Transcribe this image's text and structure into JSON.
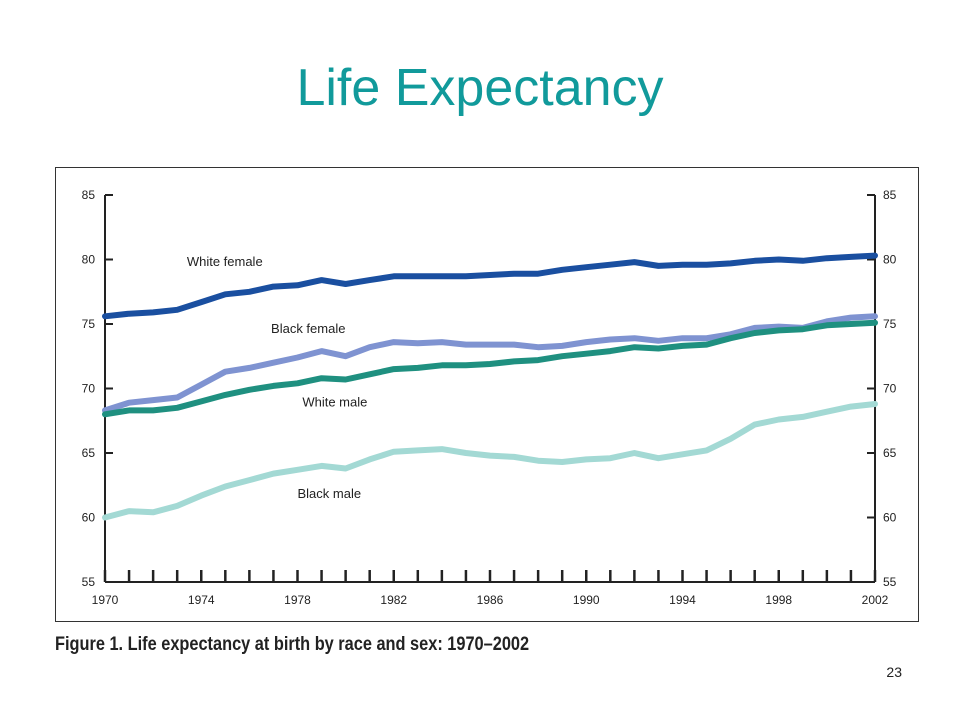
{
  "slide": {
    "title": "Life Expectancy",
    "caption": "Figure 1. Life expectancy at birth by race and sex: 1970–2002",
    "page_number": "23"
  },
  "chart_data": {
    "type": "line",
    "title": "Life expectancy at birth by race and sex: 1970–2002",
    "xlabel": "",
    "ylabel": "",
    "xlim": [
      1970,
      2002
    ],
    "ylim": [
      55,
      85
    ],
    "x_ticks": [
      1970,
      1974,
      1978,
      1982,
      1986,
      1990,
      1994,
      1998,
      2002
    ],
    "y_ticks": [
      55,
      60,
      65,
      70,
      75,
      80,
      85
    ],
    "grid": false,
    "legend": "inline labels",
    "x": [
      1970,
      1971,
      1972,
      1973,
      1974,
      1975,
      1976,
      1977,
      1978,
      1979,
      1980,
      1981,
      1982,
      1983,
      1984,
      1985,
      1986,
      1987,
      1988,
      1989,
      1990,
      1991,
      1992,
      1993,
      1994,
      1995,
      1996,
      1997,
      1998,
      1999,
      2000,
      2001,
      2002
    ],
    "series": [
      {
        "name": "White female",
        "color": "#1a4fa0",
        "values": [
          75.6,
          75.8,
          75.9,
          76.1,
          76.7,
          77.3,
          77.5,
          77.9,
          78.0,
          78.4,
          78.1,
          78.4,
          78.7,
          78.7,
          78.7,
          78.7,
          78.8,
          78.9,
          78.9,
          79.2,
          79.4,
          79.6,
          79.8,
          79.5,
          79.6,
          79.6,
          79.7,
          79.9,
          80.0,
          79.9,
          80.1,
          80.2,
          80.3
        ]
      },
      {
        "name": "Black female",
        "color": "#7f93d1",
        "values": [
          68.3,
          68.9,
          69.1,
          69.3,
          70.3,
          71.3,
          71.6,
          72.0,
          72.4,
          72.9,
          72.5,
          73.2,
          73.6,
          73.5,
          73.6,
          73.4,
          73.4,
          73.4,
          73.2,
          73.3,
          73.6,
          73.8,
          73.9,
          73.7,
          73.9,
          73.9,
          74.2,
          74.7,
          74.8,
          74.7,
          75.2,
          75.5,
          75.6
        ]
      },
      {
        "name": "White male",
        "color": "#1f9080",
        "values": [
          68.0,
          68.3,
          68.3,
          68.5,
          69.0,
          69.5,
          69.9,
          70.2,
          70.4,
          70.8,
          70.7,
          71.1,
          71.5,
          71.6,
          71.8,
          71.8,
          71.9,
          72.1,
          72.2,
          72.5,
          72.7,
          72.9,
          73.2,
          73.1,
          73.3,
          73.4,
          73.9,
          74.3,
          74.5,
          74.6,
          74.9,
          75.0,
          75.1
        ]
      },
      {
        "name": "Black male",
        "color": "#a3d9d4",
        "values": [
          60.0,
          60.5,
          60.4,
          60.9,
          61.7,
          62.4,
          62.9,
          63.4,
          63.7,
          64.0,
          63.8,
          64.5,
          65.1,
          65.2,
          65.3,
          65.0,
          64.8,
          64.7,
          64.4,
          64.3,
          64.5,
          64.6,
          65.0,
          64.6,
          64.9,
          65.2,
          66.1,
          67.2,
          67.6,
          67.8,
          68.2,
          68.6,
          68.8
        ]
      }
    ],
    "annotations": [
      {
        "text": "White female",
        "x": 1973.4,
        "y": 79.5
      },
      {
        "text": "Black female",
        "x": 1976.9,
        "y": 74.3
      },
      {
        "text": "White male",
        "x": 1978.2,
        "y": 68.6
      },
      {
        "text": "Black male",
        "x": 1978.0,
        "y": 61.5
      }
    ]
  }
}
